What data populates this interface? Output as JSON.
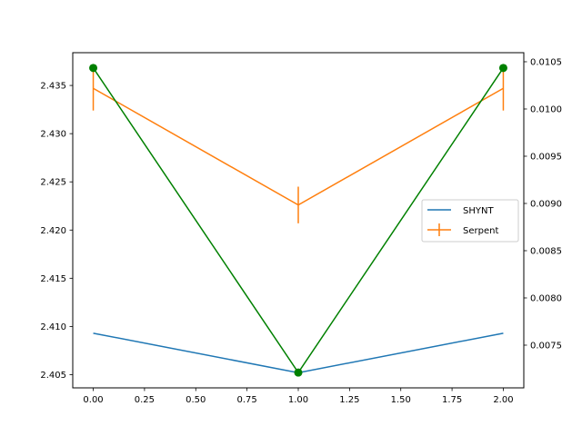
{
  "chart_data": {
    "type": "line",
    "title": "",
    "xlabel": "",
    "ylabel": "",
    "x": [
      0,
      1,
      2
    ],
    "xlim": [
      -0.1,
      2.1
    ],
    "xticks": [
      0.0,
      0.25,
      0.5,
      0.75,
      1.0,
      1.25,
      1.5,
      1.75,
      2.0
    ],
    "xtick_labels": [
      "0.00",
      "0.25",
      "0.50",
      "0.75",
      "1.00",
      "1.25",
      "1.50",
      "1.75",
      "2.00"
    ],
    "ylim_left": [
      2.40363,
      2.4384
    ],
    "yticks_left": [
      2.405,
      2.41,
      2.415,
      2.42,
      2.425,
      2.43,
      2.435
    ],
    "ytick_labels_left": [
      "2.405",
      "2.410",
      "2.415",
      "2.420",
      "2.425",
      "2.430",
      "2.435"
    ],
    "ylim_right": [
      0.007048,
      0.010596
    ],
    "yticks_right": [
      0.0075,
      0.008,
      0.0085,
      0.009,
      0.0095,
      0.01,
      0.0105
    ],
    "ytick_labels_right": [
      "0.0075",
      "0.0080",
      "0.0085",
      "0.0090",
      "0.0095",
      "0.0100",
      "0.0105"
    ],
    "series": [
      {
        "name": "SHYNT",
        "axis": "left",
        "color": "#1f77b4",
        "values": [
          2.4093,
          2.4052,
          2.4093
        ]
      },
      {
        "name": "Serpent",
        "axis": "left",
        "color": "#ff7f0e",
        "values": [
          2.4347,
          2.4226,
          2.4347
        ],
        "yerr": [
          0.0023,
          0.0019,
          0.0023
        ]
      },
      {
        "axis": "right",
        "color": "#008000",
        "marker": "circle",
        "values": [
          0.010434,
          0.00721,
          0.010434
        ]
      }
    ],
    "legend": {
      "position": "center-right",
      "entries": [
        "SHYNT",
        "Serpent"
      ]
    },
    "grid": false
  }
}
